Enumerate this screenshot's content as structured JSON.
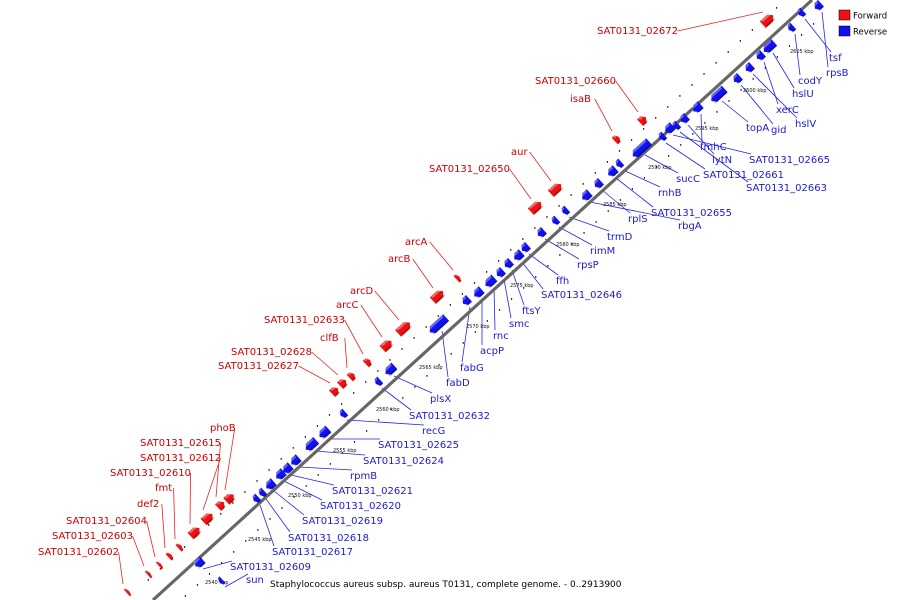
{
  "caption": "Staphylococcus aureus subsp. aureus T0131, complete genome. - 0..2913900",
  "legend": [
    {
      "label": "Forward",
      "color": "#ee1111"
    },
    {
      "label": "Reverse",
      "color": "#1111ee"
    }
  ],
  "colors": {
    "forward": "#ee1111",
    "reverse": "#1111ee",
    "backbone": "#555555"
  },
  "kbp_ticks": [
    "2540 kbp",
    "2545 kbp",
    "2550 kbp",
    "2555 kbp",
    "2560 kbp",
    "2565 kbp",
    "2570 kbp",
    "2575 kbp",
    "2580 kbp",
    "2585 kbp",
    "2590 kbp",
    "2595 kbp",
    "2600 kbp",
    "2605 kbp"
  ],
  "forward_genes": [
    {
      "label": "SAT0131_02672"
    },
    {
      "label": "SAT0131_02660"
    },
    {
      "label": "isaB"
    },
    {
      "label": "aur"
    },
    {
      "label": "SAT0131_02650"
    },
    {
      "label": "arcA"
    },
    {
      "label": "arcB"
    },
    {
      "label": "arcD"
    },
    {
      "label": "arcC"
    },
    {
      "label": "SAT0131_02633"
    },
    {
      "label": "clfB"
    },
    {
      "label": "SAT0131_02628"
    },
    {
      "label": "SAT0131_02627"
    },
    {
      "label": "phoB"
    },
    {
      "label": "SAT0131_02615"
    },
    {
      "label": "SAT0131_02612"
    },
    {
      "label": "SAT0131_02610"
    },
    {
      "label": "fmt"
    },
    {
      "label": "def2"
    },
    {
      "label": "SAT0131_02604"
    },
    {
      "label": "SAT0131_02603"
    },
    {
      "label": "SAT0131_02602"
    }
  ],
  "reverse_genes": [
    {
      "label": "tsf"
    },
    {
      "label": "rpsB"
    },
    {
      "label": "codY"
    },
    {
      "label": "hslU"
    },
    {
      "label": "xerC"
    },
    {
      "label": "hslV"
    },
    {
      "label": "topA"
    },
    {
      "label": "gid"
    },
    {
      "label": "fmhC"
    },
    {
      "label": "lytN"
    },
    {
      "label": "SAT0131_02665"
    },
    {
      "label": "sucC"
    },
    {
      "label": "SAT0131_02661"
    },
    {
      "label": "SAT0131_02663"
    },
    {
      "label": "rnhB"
    },
    {
      "label": "SAT0131_02655"
    },
    {
      "label": "rplS"
    },
    {
      "label": "rbgA"
    },
    {
      "label": "trmD"
    },
    {
      "label": "rimM"
    },
    {
      "label": "rpsP"
    },
    {
      "label": "ffh"
    },
    {
      "label": "SAT0131_02646"
    },
    {
      "label": "ftsY"
    },
    {
      "label": "smc"
    },
    {
      "label": "rnc"
    },
    {
      "label": "acpP"
    },
    {
      "label": "fabG"
    },
    {
      "label": "fabD"
    },
    {
      "label": "plsX"
    },
    {
      "label": "SAT0131_02632"
    },
    {
      "label": "recG"
    },
    {
      "label": "SAT0131_02625"
    },
    {
      "label": "SAT0131_02624"
    },
    {
      "label": "rpmB"
    },
    {
      "label": "SAT0131_02621"
    },
    {
      "label": "SAT0131_02620"
    },
    {
      "label": "SAT0131_02619"
    },
    {
      "label": "SAT0131_02618"
    },
    {
      "label": "SAT0131_02617"
    },
    {
      "label": "SAT0131_02609"
    },
    {
      "label": "sun"
    }
  ]
}
